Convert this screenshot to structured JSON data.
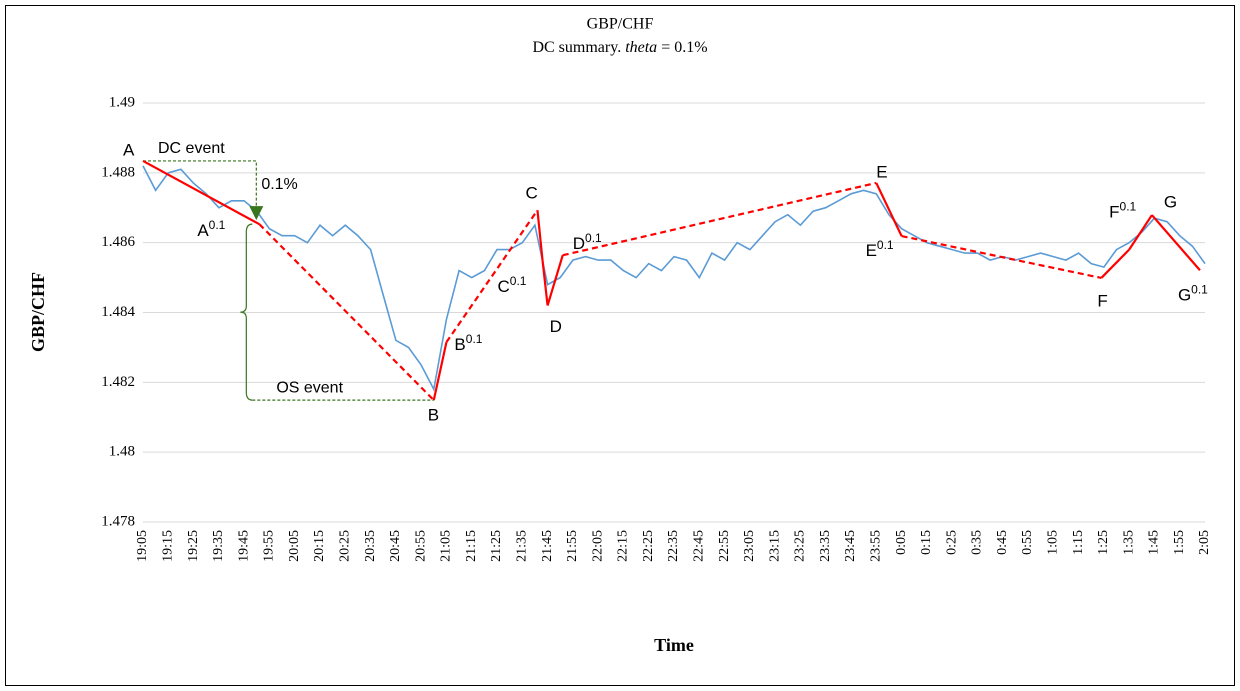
{
  "chart_data": {
    "type": "line",
    "title": "GBP/CHF",
    "subtitle": "DC summary. theta = 0.1%",
    "x_label": "Time",
    "y_label": "GBP/CHF",
    "categories": [
      "19:05",
      null,
      "19:15",
      null,
      "19:25",
      null,
      "19:35",
      null,
      "19:45",
      null,
      "19:55",
      null,
      "20:05",
      null,
      "20:15",
      null,
      "20:25",
      null,
      "20:35",
      null,
      "20:45",
      null,
      "20:55",
      null,
      "21:05",
      null,
      "21:15",
      null,
      "21:25",
      null,
      "21:35",
      null,
      "21:45",
      null,
      "21:55",
      null,
      "22:05",
      null,
      "22:15",
      null,
      "22:25",
      null,
      "22:35",
      null,
      "22:45",
      null,
      "22:55",
      null,
      "23:05",
      null,
      "23:15",
      null,
      "23:25",
      null,
      "23:35",
      null,
      "23:45",
      null,
      "23:55",
      null,
      "0:05",
      null,
      "0:15",
      null,
      "0:25",
      null,
      "0:35",
      null,
      "0:45",
      null,
      "0:55",
      null,
      "1:05",
      null,
      "1:15",
      null,
      "1:25",
      null,
      "1:35",
      null,
      "1:45",
      null,
      "1:55",
      null,
      "2:05"
    ],
    "series": [
      {
        "color": "#5b9bd5",
        "values": [
          1.4882,
          1.4875,
          1.488,
          1.4881,
          1.4877,
          1.4874,
          1.487,
          1.4872,
          1.4872,
          1.4869,
          1.4864,
          1.4862,
          1.4862,
          1.486,
          1.4865,
          1.4862,
          1.4865,
          1.4862,
          1.4858,
          1.4845,
          1.4832,
          1.483,
          1.4825,
          1.4818,
          1.4838,
          1.4852,
          1.485,
          1.4852,
          1.4858,
          1.4858,
          1.486,
          1.4865,
          1.4848,
          1.485,
          1.4855,
          1.4856,
          1.4855,
          1.4855,
          1.4852,
          1.485,
          1.4854,
          1.4852,
          1.4856,
          1.4855,
          1.485,
          1.4857,
          1.4855,
          1.486,
          1.4858,
          1.4862,
          1.4866,
          1.4868,
          1.4865,
          1.4869,
          1.487,
          1.4872,
          1.4874,
          1.4875,
          1.4874,
          1.4868,
          1.4864,
          1.4862,
          1.486,
          1.4859,
          1.4858,
          1.4857,
          1.4857,
          1.4855,
          1.4856,
          1.4855,
          1.4856,
          1.4857,
          1.4856,
          1.4855,
          1.4857,
          1.4854,
          1.4853,
          1.4858,
          1.486,
          1.4863,
          1.4867,
          1.4866,
          1.4862,
          1.4859,
          1.4854
        ]
      }
    ],
    "dc_color": "#ff0000",
    "dc_points": [
      {
        "label": "A",
        "x": "19:05",
        "value": 1.48834
      },
      {
        "label": "A0.1",
        "x": "19:51",
        "value": 1.48653
      },
      {
        "label": "B",
        "x": "21:00",
        "value": 1.48149
      },
      {
        "label": "B0.1",
        "x": "21:05",
        "value": 1.48315
      },
      {
        "label": "C",
        "x": "21:41",
        "value": 1.48693
      },
      {
        "label": "C0.1",
        "x": "21:43",
        "value": 1.4855
      },
      {
        "label": "D",
        "x": "21:45",
        "value": 1.4842
      },
      {
        "label": "D0.1",
        "x": "21:51",
        "value": 1.48564
      },
      {
        "label": "E",
        "x": "23:55",
        "value": 1.48771
      },
      {
        "label": "E0.1",
        "x": "0:05",
        "value": 1.48619
      },
      {
        "label": "F",
        "x": "1:24",
        "value": 1.48499
      },
      {
        "label": "F0.1",
        "x": "1:35",
        "value": 1.4858
      },
      {
        "label": "G",
        "x": "1:44",
        "value": 1.48679
      },
      {
        "label": "G0.1",
        "x": "2:03",
        "value": 1.48521
      }
    ],
    "dc_segments": [
      "solid",
      "dashed",
      "solid",
      "dashed",
      "solid",
      "solid",
      "solid",
      "dashed",
      "solid",
      "dashed",
      "solid",
      "solid",
      "solid"
    ],
    "annotations": [
      {
        "text": "DC event"
      },
      {
        "text": "0.1%"
      },
      {
        "text": "OS event"
      }
    ],
    "annotation_color": "#38761d",
    "ylim": [
      1.478,
      1.49
    ],
    "yticks": [
      1.478,
      1.48,
      1.482,
      1.484,
      1.486,
      1.488,
      1.49
    ],
    "grid": true
  }
}
